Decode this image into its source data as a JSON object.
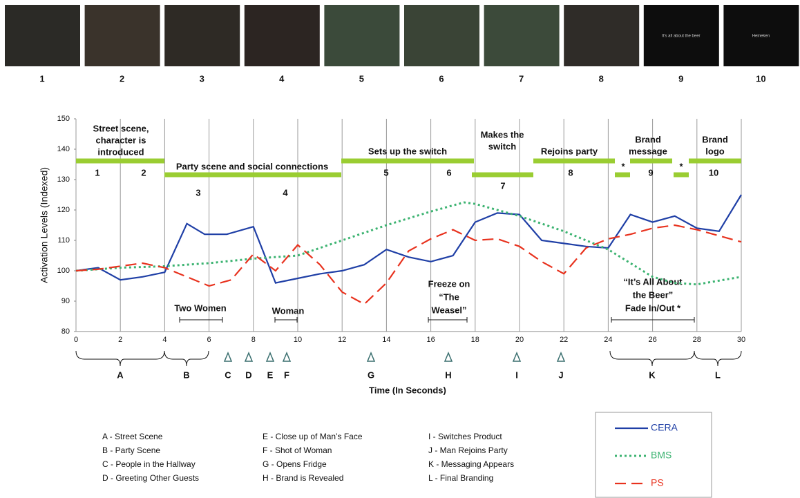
{
  "chart_data": {
    "type": "line",
    "x_label": "Time (In Seconds)",
    "y_label": "Activation Levels (Indexed)",
    "xlim": [
      0,
      30
    ],
    "ylim": [
      80,
      150
    ],
    "xticks": [
      0,
      2,
      4,
      6,
      8,
      10,
      12,
      14,
      16,
      18,
      20,
      22,
      24,
      26,
      28,
      30
    ],
    "yticks": [
      80,
      90,
      100,
      110,
      120,
      130,
      140,
      150
    ],
    "grid": true,
    "series": [
      {
        "name": "CERA",
        "color": "#1f3fa6",
        "style": "solid",
        "x": [
          0,
          1,
          2,
          3,
          4,
          5,
          5.8,
          6.8,
          8,
          9,
          10,
          11,
          12,
          13,
          14,
          15,
          16,
          17,
          18,
          19,
          20,
          21,
          22,
          23,
          24,
          25,
          26,
          27,
          28,
          29,
          30
        ],
        "values": [
          100,
          101,
          97,
          98,
          99.5,
          115.5,
          112,
          112,
          114.5,
          96,
          97.5,
          99,
          100,
          102,
          107,
          104.5,
          103,
          105,
          116,
          119,
          118.5,
          110,
          109,
          108,
          107.5,
          118.5,
          116,
          118,
          114,
          113,
          125
        ]
      },
      {
        "name": "BMS",
        "color": "#3cb371",
        "style": "dotted",
        "x": [
          0,
          2,
          4,
          6,
          8,
          10,
          12,
          14,
          16,
          17.5,
          18,
          20,
          22,
          24,
          26,
          27,
          28,
          30
        ],
        "values": [
          100,
          101,
          101.5,
          102.5,
          104,
          105,
          110,
          115,
          119.5,
          122.5,
          122,
          118,
          113,
          107,
          98,
          96,
          95.5,
          98
        ]
      },
      {
        "name": "PS",
        "color": "#e8321e",
        "style": "dashed",
        "x": [
          0,
          1,
          2,
          3,
          4,
          5,
          6,
          7,
          8,
          9,
          10,
          11,
          12,
          13,
          14,
          15,
          16,
          17,
          18,
          19,
          20,
          21,
          22,
          23,
          24,
          25,
          26,
          27,
          28,
          29,
          30
        ],
        "values": [
          100,
          100.5,
          101.5,
          102.5,
          101,
          98,
          95,
          97,
          105.5,
          100,
          108.5,
          102,
          93,
          89,
          96,
          106.5,
          110.5,
          113.5,
          110,
          110.5,
          108,
          103,
          99,
          107.5,
          110.5,
          112,
          114,
          115,
          113.5,
          111.5,
          109.5
        ]
      }
    ],
    "frames": [
      {
        "label": "1"
      },
      {
        "label": "2"
      },
      {
        "label": "3"
      },
      {
        "label": "4"
      },
      {
        "label": "5"
      },
      {
        "label": "6"
      },
      {
        "label": "7"
      },
      {
        "label": "8"
      },
      {
        "label": "9",
        "caption": "It's all about the beer"
      },
      {
        "label": "10",
        "caption": "Heineken"
      }
    ],
    "scenes": [
      {
        "lines": [
          "Street scene,",
          "character is",
          "introduced"
        ]
      },
      {
        "lines": [
          "Party scene and social connections"
        ]
      },
      {
        "lines": [
          "Sets up the switch"
        ]
      },
      {
        "lines": [
          "Makes the",
          "switch"
        ]
      },
      {
        "lines": [
          "Rejoins party"
        ]
      },
      {
        "lines": [
          "Brand",
          "message"
        ]
      },
      {
        "lines": [
          "Brand",
          "logo"
        ]
      },
      {
        "lines": [
          "*"
        ]
      },
      {
        "lines": [
          "*"
        ]
      }
    ],
    "scene_numbers": [
      "1",
      "2",
      "3",
      "4",
      "5",
      "6",
      "7",
      "8",
      "9",
      "10"
    ],
    "annotations": [
      {
        "lines": [
          "Two Women"
        ]
      },
      {
        "lines": [
          "Woman"
        ]
      },
      {
        "lines": [
          "Freeze on",
          "“The",
          "Weasel”"
        ]
      },
      {
        "lines": [
          "“It’s All About",
          "the Beer”",
          "Fade In/Out *"
        ]
      }
    ],
    "markers": [
      "A",
      "B",
      "C",
      "D",
      "E",
      "F",
      "G",
      "H",
      "I",
      "J",
      "K",
      "L"
    ],
    "marker_legend": [
      "A - Street Scene",
      "B - Party Scene",
      "C - People in the Hallway",
      "D - Greeting Other Guests",
      "E - Close up of Man’s Face",
      "F - Shot of Woman",
      "G - Opens Fridge",
      "H - Brand is Revealed",
      "I - Switches Product",
      "J - Man Rejoins Party",
      "K - Messaging Appears",
      "L - Final Branding"
    ]
  }
}
